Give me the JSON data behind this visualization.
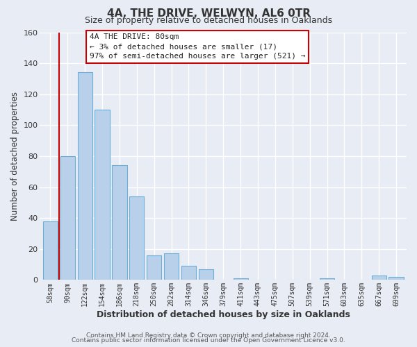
{
  "title": "4A, THE DRIVE, WELWYN, AL6 0TR",
  "subtitle": "Size of property relative to detached houses in Oaklands",
  "xlabel": "Distribution of detached houses by size in Oaklands",
  "ylabel": "Number of detached properties",
  "bar_labels": [
    "58sqm",
    "90sqm",
    "122sqm",
    "154sqm",
    "186sqm",
    "218sqm",
    "250sqm",
    "282sqm",
    "314sqm",
    "346sqm",
    "379sqm",
    "411sqm",
    "443sqm",
    "475sqm",
    "507sqm",
    "539sqm",
    "571sqm",
    "603sqm",
    "635sqm",
    "667sqm",
    "699sqm"
  ],
  "bar_heights": [
    38,
    80,
    134,
    110,
    74,
    54,
    16,
    17,
    9,
    7,
    0,
    1,
    0,
    0,
    0,
    0,
    1,
    0,
    0,
    3,
    2
  ],
  "bar_color": "#b8d0ea",
  "bar_edge_color": "#6aafd6",
  "highlight_color": "#cc0000",
  "ylim": [
    0,
    160
  ],
  "yticks": [
    0,
    20,
    40,
    60,
    80,
    100,
    120,
    140,
    160
  ],
  "annotation_title": "4A THE DRIVE: 80sqm",
  "annotation_line1": "← 3% of detached houses are smaller (17)",
  "annotation_line2": "97% of semi-detached houses are larger (521) →",
  "annotation_box_color": "#ffffff",
  "annotation_border_color": "#cc0000",
  "footer_line1": "Contains HM Land Registry data © Crown copyright and database right 2024.",
  "footer_line2": "Contains public sector information licensed under the Open Government Licence v3.0.",
  "background_color": "#e8ecf5",
  "plot_background_color": "#e8ecf5",
  "grid_color": "#ffffff"
}
